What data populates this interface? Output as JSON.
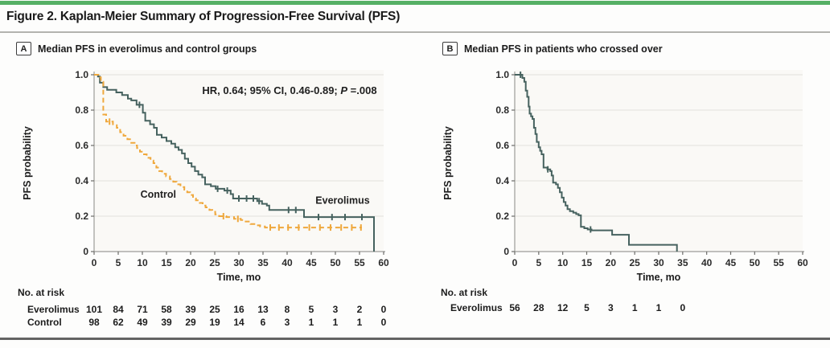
{
  "figure": {
    "title": "Figure 2. Kaplan-Meier Summary of Progression-Free Survival (PFS)",
    "accent_color": "#56b065"
  },
  "chart_data": [
    {
      "type": "line",
      "panel_label": "A",
      "title": "Median PFS in everolimus and control groups",
      "xlabel": "Time, mo",
      "ylabel": "PFS probability",
      "xlim": [
        0,
        60
      ],
      "ylim": [
        0,
        1.0
      ],
      "xticks": [
        0,
        5,
        10,
        15,
        20,
        25,
        30,
        35,
        40,
        45,
        50,
        55,
        60
      ],
      "yticks": [
        0,
        0.2,
        0.4,
        0.6,
        0.8,
        1.0
      ],
      "grid": "horizontal",
      "annotation": {
        "before_p": "HR, 0.64; 95% CI, 0.46-0.89; ",
        "p_label": "P",
        "after_p": " =.008",
        "pos": [
          40.5,
          0.89
        ]
      },
      "series": [
        {
          "name": "Everolimus",
          "color": "#46625f",
          "dash": null,
          "label_pos": [
            51.5,
            0.27
          ],
          "steps": [
            [
              0,
              1.0
            ],
            [
              0.8,
              0.99
            ],
            [
              1.2,
              0.955
            ],
            [
              1.9,
              0.93
            ],
            [
              2.7,
              0.915
            ],
            [
              4.6,
              0.9
            ],
            [
              5.8,
              0.885
            ],
            [
              7,
              0.865
            ],
            [
              7.7,
              0.855
            ],
            [
              8.8,
              0.83
            ],
            [
              10.1,
              0.785
            ],
            [
              10.6,
              0.74
            ],
            [
              11.6,
              0.72
            ],
            [
              12.4,
              0.7
            ],
            [
              13,
              0.66
            ],
            [
              14,
              0.645
            ],
            [
              15,
              0.625
            ],
            [
              16,
              0.61
            ],
            [
              16.8,
              0.59
            ],
            [
              17.5,
              0.575
            ],
            [
              18.2,
              0.555
            ],
            [
              18.8,
              0.525
            ],
            [
              19.5,
              0.5
            ],
            [
              20.2,
              0.48
            ],
            [
              20.9,
              0.455
            ],
            [
              21.6,
              0.435
            ],
            [
              22.4,
              0.42
            ],
            [
              23,
              0.38
            ],
            [
              24.2,
              0.37
            ],
            [
              25.2,
              0.355
            ],
            [
              27,
              0.345
            ],
            [
              28.3,
              0.325
            ],
            [
              28.8,
              0.3
            ],
            [
              33.8,
              0.285
            ],
            [
              34.8,
              0.27
            ],
            [
              35.8,
              0.26
            ],
            [
              36.3,
              0.235
            ],
            [
              43.5,
              0.195
            ],
            [
              58,
              0
            ]
          ],
          "censors": [
            [
              9.4,
              0.83
            ],
            [
              25.6,
              0.355
            ],
            [
              27.6,
              0.345
            ],
            [
              30,
              0.3
            ],
            [
              31.6,
              0.3
            ],
            [
              33,
              0.3
            ],
            [
              34.2,
              0.285
            ],
            [
              40.3,
              0.235
            ],
            [
              41.8,
              0.235
            ],
            [
              46.5,
              0.195
            ],
            [
              49.3,
              0.195
            ],
            [
              52,
              0.195
            ],
            [
              55.5,
              0.195
            ]
          ]
        },
        {
          "name": "Control",
          "color": "#efa83c",
          "dash": [
            6,
            4
          ],
          "label_pos": [
            13.3,
            0.305
          ],
          "steps": [
            [
              0,
              1.0
            ],
            [
              0.9,
              0.985
            ],
            [
              1.4,
              0.96
            ],
            [
              1.9,
              0.775
            ],
            [
              2.5,
              0.735
            ],
            [
              3.9,
              0.715
            ],
            [
              4.7,
              0.7
            ],
            [
              5.4,
              0.675
            ],
            [
              6.1,
              0.655
            ],
            [
              6.9,
              0.635
            ],
            [
              7.7,
              0.615
            ],
            [
              8.4,
              0.6
            ],
            [
              8.9,
              0.585
            ],
            [
              9.5,
              0.565
            ],
            [
              10.1,
              0.55
            ],
            [
              10.9,
              0.53
            ],
            [
              11.7,
              0.515
            ],
            [
              12.3,
              0.5
            ],
            [
              12.9,
              0.475
            ],
            [
              13.5,
              0.455
            ],
            [
              14.1,
              0.44
            ],
            [
              14.9,
              0.425
            ],
            [
              15.7,
              0.41
            ],
            [
              16.4,
              0.395
            ],
            [
              17.1,
              0.38
            ],
            [
              17.9,
              0.365
            ],
            [
              18.7,
              0.35
            ],
            [
              19.3,
              0.335
            ],
            [
              19.9,
              0.32
            ],
            [
              20.5,
              0.3
            ],
            [
              21.1,
              0.29
            ],
            [
              21.9,
              0.275
            ],
            [
              22.5,
              0.26
            ],
            [
              23.1,
              0.25
            ],
            [
              23.9,
              0.235
            ],
            [
              24.5,
              0.225
            ],
            [
              25.1,
              0.21
            ],
            [
              25.9,
              0.2
            ],
            [
              27.4,
              0.195
            ],
            [
              29,
              0.185
            ],
            [
              30.4,
              0.178
            ],
            [
              31.4,
              0.17
            ],
            [
              32.4,
              0.156
            ],
            [
              33.4,
              0.148
            ],
            [
              34.4,
              0.142
            ],
            [
              35.4,
              0.136
            ],
            [
              55.5,
              0.136
            ]
          ],
          "censors": [
            [
              3.2,
              0.735
            ],
            [
              26.8,
              0.2
            ],
            [
              29.8,
              0.185
            ],
            [
              36.5,
              0.136
            ],
            [
              38.3,
              0.136
            ],
            [
              40.2,
              0.136
            ],
            [
              42.4,
              0.136
            ],
            [
              44.6,
              0.136
            ],
            [
              46.8,
              0.136
            ],
            [
              49,
              0.136
            ],
            [
              51.2,
              0.136
            ],
            [
              53.4,
              0.136
            ],
            [
              55.3,
              0.136
            ]
          ]
        }
      ],
      "risk_table": {
        "heading": "No. at risk",
        "times": [
          0,
          5,
          10,
          15,
          20,
          25,
          30,
          35,
          40,
          45,
          50,
          55,
          60
        ],
        "rows": [
          {
            "name": "Everolimus",
            "values": [
              101,
              84,
              71,
              58,
              39,
              25,
              16,
              13,
              8,
              5,
              3,
              2,
              0
            ]
          },
          {
            "name": "Control",
            "values": [
              98,
              62,
              49,
              39,
              29,
              19,
              14,
              6,
              3,
              1,
              1,
              1,
              0
            ]
          }
        ]
      }
    },
    {
      "type": "line",
      "panel_label": "B",
      "title": "Median PFS in patients who crossed over",
      "xlabel": "Time, mo",
      "ylabel": "PFS probability",
      "xlim": [
        0,
        60
      ],
      "ylim": [
        0,
        1.0
      ],
      "xticks": [
        0,
        5,
        10,
        15,
        20,
        25,
        30,
        35,
        40,
        45,
        50,
        55,
        60
      ],
      "yticks": [
        0,
        0.2,
        0.4,
        0.6,
        0.8,
        1.0
      ],
      "grid": "horizontal",
      "annotation": null,
      "series": [
        {
          "name": "Everolimus",
          "color": "#46625f",
          "dash": null,
          "label_pos": null,
          "steps": [
            [
              0,
              1.0
            ],
            [
              1.6,
              0.982
            ],
            [
              2.0,
              0.96
            ],
            [
              2.3,
              0.91
            ],
            [
              2.6,
              0.875
            ],
            [
              2.9,
              0.82
            ],
            [
              3.1,
              0.78
            ],
            [
              3.4,
              0.765
            ],
            [
              3.7,
              0.75
            ],
            [
              4.0,
              0.7
            ],
            [
              4.3,
              0.665
            ],
            [
              4.6,
              0.62
            ],
            [
              5.0,
              0.59
            ],
            [
              5.3,
              0.57
            ],
            [
              5.6,
              0.55
            ],
            [
              6.0,
              0.475
            ],
            [
              6.8,
              0.465
            ],
            [
              7.4,
              0.455
            ],
            [
              7.7,
              0.43
            ],
            [
              8.0,
              0.39
            ],
            [
              8.6,
              0.38
            ],
            [
              9.0,
              0.36
            ],
            [
              9.4,
              0.335
            ],
            [
              9.8,
              0.305
            ],
            [
              10.2,
              0.28
            ],
            [
              10.6,
              0.26
            ],
            [
              11.0,
              0.24
            ],
            [
              11.5,
              0.228
            ],
            [
              12.2,
              0.22
            ],
            [
              12.8,
              0.212
            ],
            [
              13.3,
              0.205
            ],
            [
              13.8,
              0.14
            ],
            [
              14.5,
              0.132
            ],
            [
              15.2,
              0.125
            ],
            [
              16.0,
              0.12
            ],
            [
              20.3,
              0.095
            ],
            [
              23.8,
              0.038
            ],
            [
              33.8,
              0
            ]
          ],
          "censors": [
            [
              1.2,
              1.0
            ],
            [
              6.9,
              0.465
            ],
            [
              15.8,
              0.125
            ]
          ]
        }
      ],
      "risk_table": {
        "heading": "No. at risk",
        "times": [
          0,
          5,
          10,
          15,
          20,
          25,
          30,
          35
        ],
        "rows": [
          {
            "name": "Everolimus",
            "values": [
              56,
              28,
              12,
              5,
              3,
              1,
              1,
              0
            ]
          }
        ]
      }
    }
  ]
}
